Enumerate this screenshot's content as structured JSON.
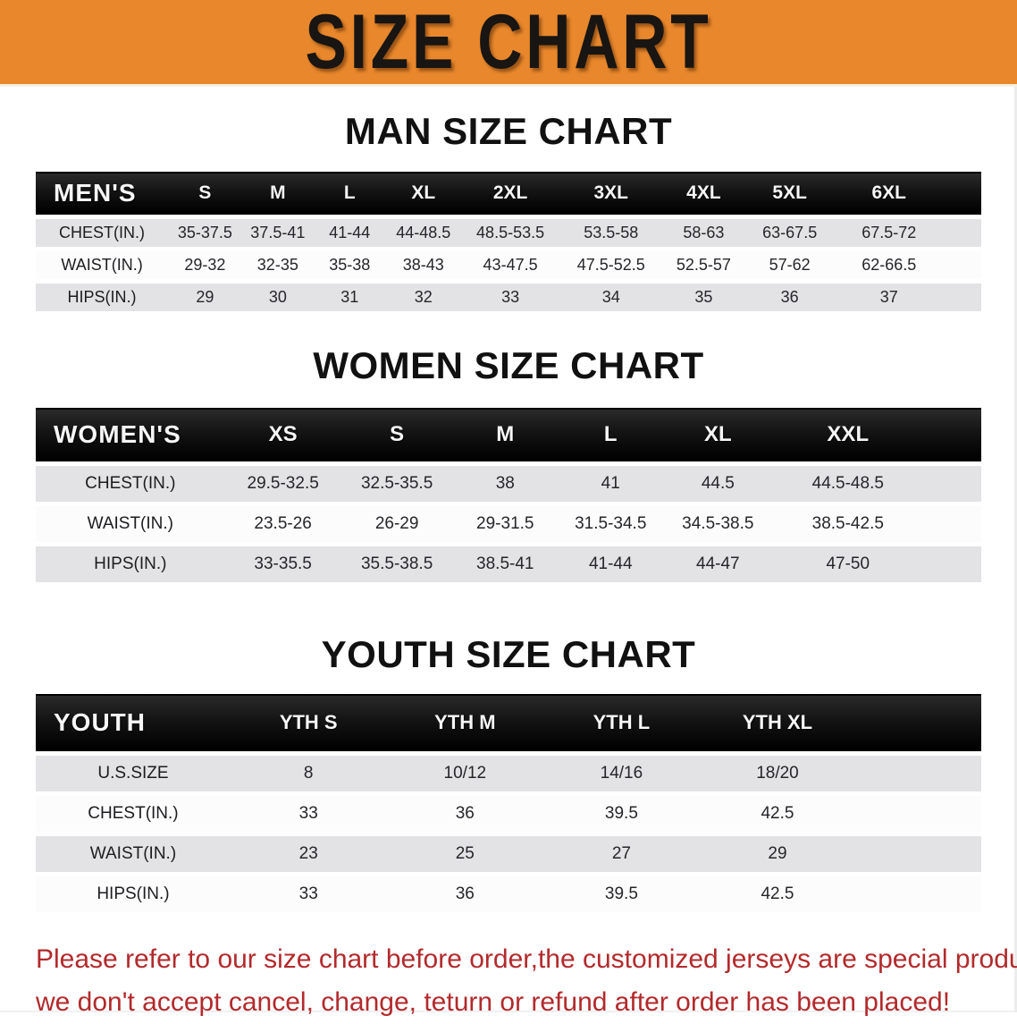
{
  "banner": {
    "title": "SIZE CHART"
  },
  "sections": [
    {
      "title": "MAN SIZE CHART",
      "header_label": "MEN'S",
      "columns": [
        "S",
        "M",
        "L",
        "XL",
        "2XL",
        "3XL",
        "4XL",
        "5XL",
        "6XL"
      ],
      "rows": [
        {
          "label": "CHEST(IN.)",
          "values": [
            "35-37.5",
            "37.5-41",
            "41-44",
            "44-48.5",
            "48.5-53.5",
            "53.5-58",
            "58-63",
            "63-67.5",
            "67.5-72"
          ]
        },
        {
          "label": "WAIST(IN.)",
          "values": [
            "29-32",
            "32-35",
            "35-38",
            "38-43",
            "43-47.5",
            "47.5-52.5",
            "52.5-57",
            "57-62",
            "62-66.5"
          ]
        },
        {
          "label": "HIPS(IN.)",
          "values": [
            "29",
            "30",
            "31",
            "32",
            "33",
            "34",
            "35",
            "36",
            "37"
          ]
        }
      ]
    },
    {
      "title": "WOMEN SIZE CHART",
      "header_label": "WOMEN'S",
      "columns": [
        "XS",
        "S",
        "M",
        "L",
        "XL",
        "XXL"
      ],
      "rows": [
        {
          "label": "CHEST(IN.)",
          "values": [
            "29.5-32.5",
            "32.5-35.5",
            "38",
            "41",
            "44.5",
            "44.5-48.5"
          ]
        },
        {
          "label": "WAIST(IN.)",
          "values": [
            "23.5-26",
            "26-29",
            "29-31.5",
            "31.5-34.5",
            "34.5-38.5",
            "38.5-42.5"
          ]
        },
        {
          "label": "HIPS(IN.)",
          "values": [
            "33-35.5",
            "35.5-38.5",
            "38.5-41",
            "41-44",
            "44-47",
            "47-50"
          ]
        }
      ]
    },
    {
      "title": "YOUTH SIZE CHART",
      "header_label": "YOUTH",
      "columns": [
        "YTH S",
        "YTH M",
        "YTH L",
        "YTH XL"
      ],
      "rows": [
        {
          "label": "U.S.SIZE",
          "values": [
            "8",
            "10/12",
            "14/16",
            "18/20"
          ]
        },
        {
          "label": "CHEST(IN.)",
          "values": [
            "33",
            "36",
            "39.5",
            "42.5"
          ]
        },
        {
          "label": "WAIST(IN.)",
          "values": [
            "23",
            "25",
            "27",
            "29"
          ]
        },
        {
          "label": "HIPS(IN.)",
          "values": [
            "33",
            "36",
            "39.5",
            "42.5"
          ]
        }
      ]
    }
  ],
  "disclaimer": {
    "line1": "Please refer to our size chart before order,the customized jerseys are special products,",
    "line2": "we don't accept cancel, change, teturn or refund after order has been placed!"
  },
  "colors": {
    "banner_bg": "#E8872B",
    "table_header_bg": "#141414",
    "row_gray": "#E3E3E5",
    "disclaimer_red": "#B32A2C"
  }
}
